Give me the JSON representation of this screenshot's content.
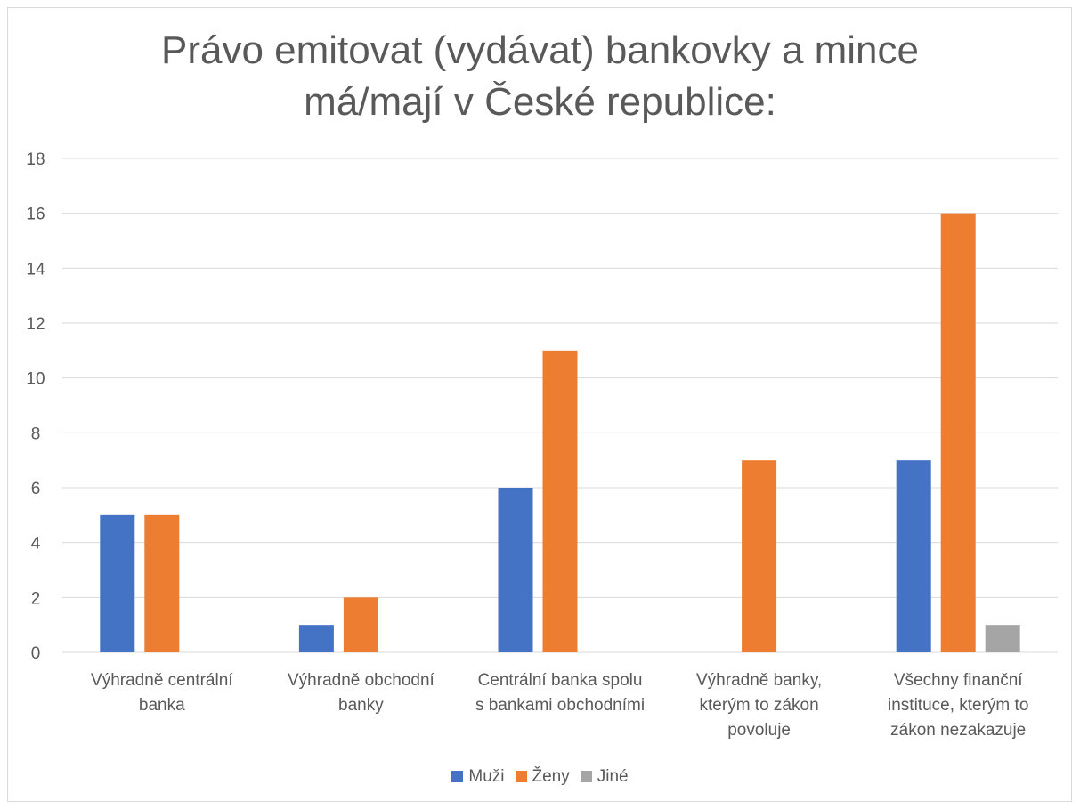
{
  "chart_data": {
    "type": "bar",
    "title_lines": [
      "Právo emitovat (vydávat) bankovky a mince",
      "má/mají v České republice:"
    ],
    "xlabel": "",
    "ylabel": "",
    "ylim": [
      0,
      18
    ],
    "ytick_step": 2,
    "yticks": [
      "0",
      "2",
      "4",
      "6",
      "8",
      "10",
      "12",
      "14",
      "16",
      "18"
    ],
    "grid": true,
    "legend_position": "bottom",
    "categories": [
      [
        "Výhradně centrální",
        "banka"
      ],
      [
        "Výhradně obchodní",
        "banky"
      ],
      [
        "Centrální banka spolu",
        "s bankami obchodními"
      ],
      [
        "Výhradně banky,",
        "kterým to zákon",
        "povoluje"
      ],
      [
        "Všechny finanční",
        "instituce, kterým to",
        "zákon nezakazuje"
      ]
    ],
    "series": [
      {
        "name": "Muži",
        "color": "#4472c4",
        "values": [
          5,
          1,
          6,
          0,
          7
        ]
      },
      {
        "name": "Ženy",
        "color": "#ed7d31",
        "values": [
          5,
          2,
          11,
          7,
          16
        ]
      },
      {
        "name": "Jiné",
        "color": "#a5a5a5",
        "values": [
          0,
          0,
          0,
          0,
          1
        ]
      }
    ]
  }
}
